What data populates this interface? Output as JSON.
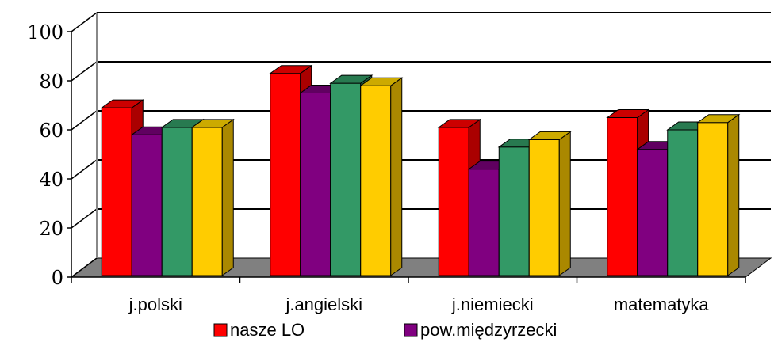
{
  "chart_data": {
    "type": "bar",
    "categories": [
      "j.polski",
      "j.angielski",
      "j.niemiecki",
      "matematyka"
    ],
    "series": [
      {
        "name": "nasze LO",
        "values": [
          69,
          83,
          61,
          65
        ],
        "color": "#ff0000",
        "side_color": "#aa0000",
        "top_color": "#cc0000"
      },
      {
        "name": "pow.międzyrzecki",
        "values": [
          58,
          75,
          44,
          52
        ],
        "color": "#800080",
        "side_color": "#4d004d",
        "top_color": "#600060"
      },
      {
        "name": "",
        "values": [
          61,
          79,
          53,
          60
        ],
        "color": "#339966",
        "side_color": "#1f5c3d",
        "top_color": "#287a50"
      },
      {
        "name": "",
        "values": [
          61,
          78,
          56,
          63
        ],
        "color": "#ffcc00",
        "side_color": "#aa8800",
        "top_color": "#ccaa00"
      }
    ],
    "yticks": [
      0,
      20,
      40,
      60,
      80,
      100
    ],
    "ylim": [
      0,
      100
    ],
    "grid": true,
    "legend_position": "bottom",
    "floor_color": "#808080"
  }
}
